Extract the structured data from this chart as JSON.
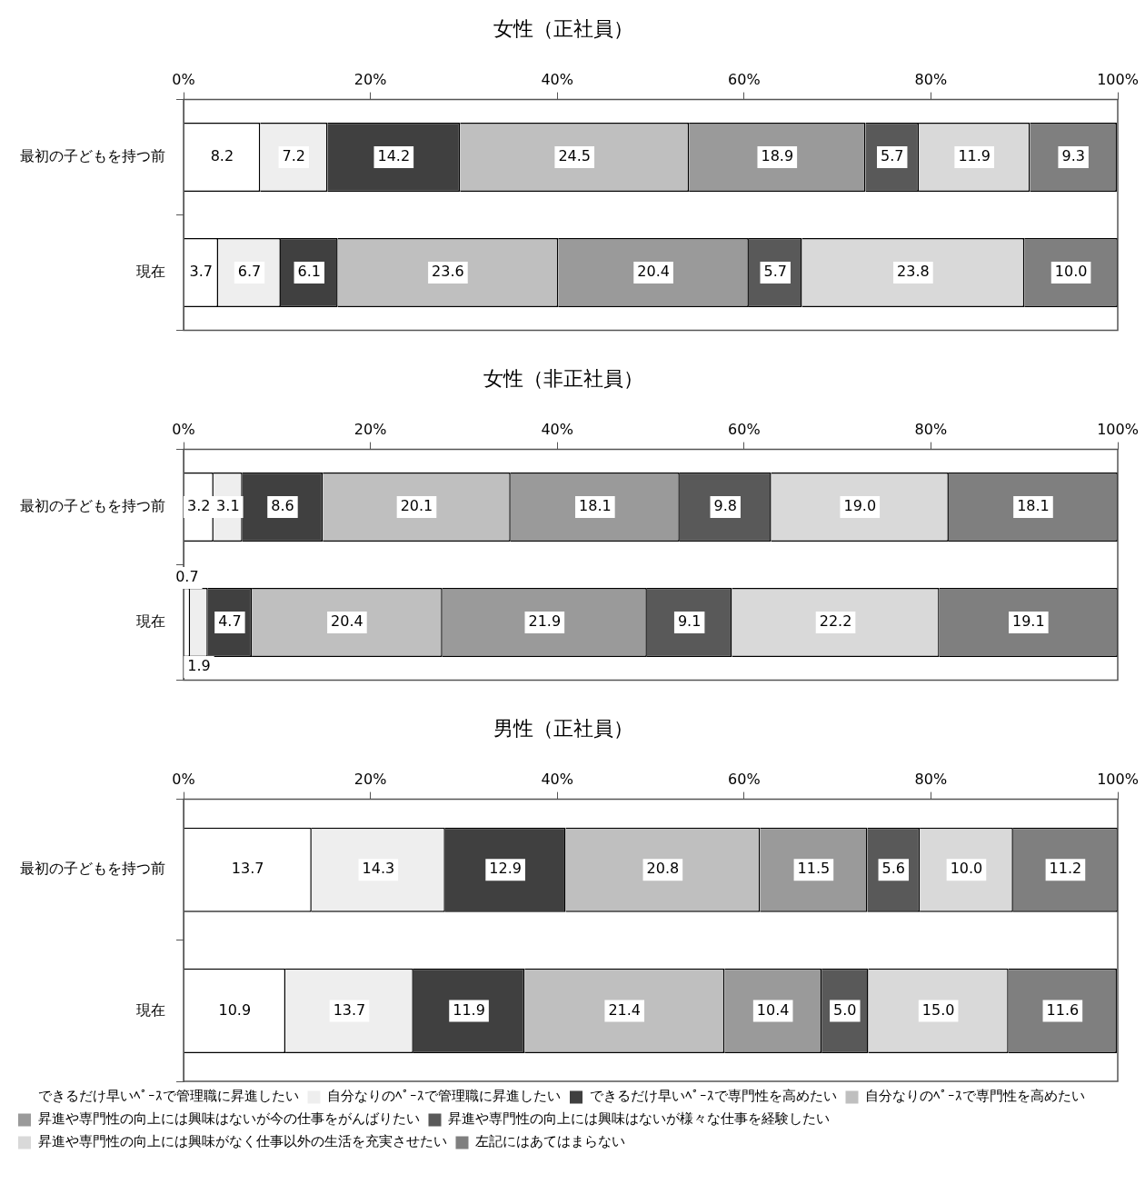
{
  "chart_data": [
    {
      "type": "bar",
      "title": "女性（正社員）",
      "orientation": "horizontal",
      "stacked": true,
      "categories": [
        "最初の子どもを持つ前",
        "現在"
      ],
      "xlim": [
        0,
        100
      ],
      "xticks": [
        {
          "value": 0,
          "label": "0%"
        },
        {
          "value": 20,
          "label": "20%"
        },
        {
          "value": 40,
          "label": "40%"
        },
        {
          "value": 60,
          "label": "60%"
        },
        {
          "value": 80,
          "label": "80%"
        },
        {
          "value": 100,
          "label": "100%"
        }
      ],
      "grid": false,
      "legend": false,
      "series": [
        {
          "color": "#ffffff",
          "values": [
            8.2,
            3.7
          ],
          "value_labels": [
            "8.2",
            "3.7"
          ]
        },
        {
          "color": "#eeeeee",
          "values": [
            7.2,
            6.7
          ],
          "value_labels": [
            "7.2",
            "6.7"
          ]
        },
        {
          "color": "#404040",
          "values": [
            14.2,
            6.1
          ],
          "value_labels": [
            "14.2",
            "6.1"
          ]
        },
        {
          "color": "#bfbfbf",
          "values": [
            24.5,
            23.6
          ],
          "value_labels": [
            "24.5",
            "23.6"
          ]
        },
        {
          "color": "#9a9a9a",
          "values": [
            18.9,
            20.4
          ],
          "value_labels": [
            "18.9",
            "20.4"
          ]
        },
        {
          "color": "#595959",
          "values": [
            5.7,
            5.7
          ],
          "value_labels": [
            "5.7",
            "5.7"
          ]
        },
        {
          "color": "#d9d9d9",
          "values": [
            11.9,
            23.8
          ],
          "value_labels": [
            "11.9",
            "23.8"
          ]
        },
        {
          "color": "#7f7f7f",
          "values": [
            9.3,
            10.0
          ],
          "value_labels": [
            "9.3",
            "10.0"
          ]
        }
      ]
    },
    {
      "type": "bar",
      "title": "女性（非正社員）",
      "orientation": "horizontal",
      "stacked": true,
      "categories": [
        "最初の子どもを持つ前",
        "現在"
      ],
      "xlim": [
        0,
        100
      ],
      "xticks": [
        {
          "value": 0,
          "label": "0%"
        },
        {
          "value": 20,
          "label": "20%"
        },
        {
          "value": 40,
          "label": "40%"
        },
        {
          "value": 60,
          "label": "60%"
        },
        {
          "value": 80,
          "label": "80%"
        },
        {
          "value": 100,
          "label": "100%"
        }
      ],
      "grid": false,
      "legend": false,
      "series": [
        {
          "color": "#ffffff",
          "values": [
            3.2,
            0.7
          ],
          "value_labels": [
            "3.2",
            "0.7"
          ]
        },
        {
          "color": "#eeeeee",
          "values": [
            3.1,
            1.9
          ],
          "value_labels": [
            "3.1",
            "1.9"
          ]
        },
        {
          "color": "#404040",
          "values": [
            8.6,
            4.7
          ],
          "value_labels": [
            "8.6",
            "4.7"
          ]
        },
        {
          "color": "#bfbfbf",
          "values": [
            20.1,
            20.4
          ],
          "value_labels": [
            "20.1",
            "20.4"
          ]
        },
        {
          "color": "#9a9a9a",
          "values": [
            18.1,
            21.9
          ],
          "value_labels": [
            "18.1",
            "21.9"
          ]
        },
        {
          "color": "#595959",
          "values": [
            9.8,
            9.1
          ],
          "value_labels": [
            "9.8",
            "9.1"
          ]
        },
        {
          "color": "#d9d9d9",
          "values": [
            19.0,
            22.2
          ],
          "value_labels": [
            "19.0",
            "22.2"
          ]
        },
        {
          "color": "#7f7f7f",
          "values": [
            18.1,
            19.1
          ],
          "value_labels": [
            "18.1",
            "19.1"
          ]
        }
      ]
    },
    {
      "type": "bar",
      "title": "男性（正社員）",
      "orientation": "horizontal",
      "stacked": true,
      "categories": [
        "最初の子どもを持つ前",
        "現在"
      ],
      "xlim": [
        0,
        100
      ],
      "xticks": [
        {
          "value": 0,
          "label": "0%"
        },
        {
          "value": 20,
          "label": "20%"
        },
        {
          "value": 40,
          "label": "40%"
        },
        {
          "value": 60,
          "label": "60%"
        },
        {
          "value": 80,
          "label": "80%"
        },
        {
          "value": 100,
          "label": "100%"
        }
      ],
      "grid": false,
      "legend": "bottom",
      "series": [
        {
          "name": "できるだけ早いﾍﾟｰｽで管理職に昇進したい",
          "color": "#ffffff",
          "values": [
            13.7,
            10.9
          ],
          "value_labels": [
            "13.7",
            "10.9"
          ]
        },
        {
          "name": "自分なりのﾍﾟｰｽで管理職に昇進したい",
          "color": "#eeeeee",
          "values": [
            14.3,
            13.7
          ],
          "value_labels": [
            "14.3",
            "13.7"
          ]
        },
        {
          "name": "できるだけ早いﾍﾟｰｽで専門性を高めたい",
          "color": "#404040",
          "values": [
            12.9,
            11.9
          ],
          "value_labels": [
            "12.9",
            "11.9"
          ]
        },
        {
          "name": "自分なりのﾍﾟｰｽで専門性を高めたい",
          "color": "#bfbfbf",
          "values": [
            20.8,
            21.4
          ],
          "value_labels": [
            "20.8",
            "21.4"
          ]
        },
        {
          "name": "昇進や専門性の向上には興味はないが今の仕事をがんばりたい",
          "color": "#9a9a9a",
          "values": [
            11.5,
            10.4
          ],
          "value_labels": [
            "11.5",
            "10.4"
          ]
        },
        {
          "name": "昇進や専門性の向上には興味はないが様々な仕事を経験したい",
          "color": "#595959",
          "values": [
            5.6,
            5.0
          ],
          "value_labels": [
            "5.6",
            "5.0"
          ]
        },
        {
          "name": "昇進や専門性の向上には興味がなく仕事以外の生活を充実させたい",
          "color": "#d9d9d9",
          "values": [
            10.0,
            15.0
          ],
          "value_labels": [
            "10.0",
            "15.0"
          ]
        },
        {
          "name": "左記にはあてはまらない",
          "color": "#7f7f7f",
          "values": [
            11.2,
            11.6
          ],
          "value_labels": [
            "11.2",
            "11.6"
          ]
        }
      ]
    }
  ]
}
